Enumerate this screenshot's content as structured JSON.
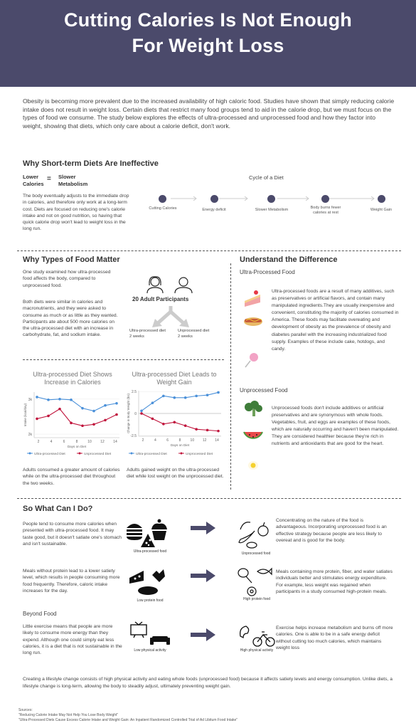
{
  "title_line1": "Cutting Calories Is Not Enough",
  "title_line2": "For Weight Loss",
  "intro": "Obesity is becoming more prevalent due to the increased availability of high caloric food. Studies have shown that simply reducing calorie intake does not result in weight loss. Certain diets that restrict many food groups tend to aid in the calorie drop, but we must focus on the types of food we consume. The study below explores the effects of ultra-processed and unprocessed food and how they factor into weight, showing that diets, which only care about a calorie deficit, don't work.",
  "short_term": {
    "heading": "Why Short-term Diets Are Ineffective",
    "eq_left1": "Lower",
    "eq_left2": "Calories",
    "eq_sign": "=",
    "eq_right1": "Slower",
    "eq_right2": "Metabolism",
    "body": "The body eventually adjusts to the immediate drop in calories, and therefore only work at a long-term cost. Diets are focused on reducing one's calorie intake and not on good nutrition, so having that quick calorie drop won't lead to weight loss in the long run.",
    "cycle_title": "Cycle of a Diet",
    "cycle": [
      {
        "label": "Cutting Calories"
      },
      {
        "label": "Energy deficit"
      },
      {
        "label": "Slower Metabolism"
      },
      {
        "label": "Body burns fewer calories at rest"
      },
      {
        "label": "Weight Gain"
      }
    ]
  },
  "types": {
    "heading": "Why Types of Food Matter",
    "p1": "One study examined how ultra-processed food affects the body, compared to unprocessed food.",
    "p2": "Both diets were similar in calories and macronutrients, and they were asked to consume as much or as little as they wanted. Participants ate about 500 more calories on the ultra-processed diet with an increase in carbohydrate, fat, and sodium intake.",
    "participants": "20 Adult Participants",
    "left_diet1": "Ultra-processed diet",
    "left_diet2": "2 weeks",
    "right_diet1": "Unprocessed diet",
    "right_diet2": "2 weeks"
  },
  "difference": {
    "heading": "Understand the Difference",
    "ultra_heading": "Ultra-Processed Food",
    "ultra_body": "Ultra-processed foods are a result of many additives, such as preservatives or artificial flavors, and contain many manipulated ingredients.They are usually inexpensive and convenient, constituting the majority of calories consumed in America. These foods may facilitate overeating and development of obesity as the prevalence of obesity and diabetes parallel with the increasing industrialized food supply. Examples of these include cake, hotdogs, and candy.",
    "un_heading": "Unprocessed Food",
    "un_body": "Unprocessed foods don't include additives or artificial preservatives and are synonymous with whole foods. Vegetables, fruit, and eggs are examples of these foods, which are naturally occurring and haven't been manipulated. They are considered healthier because they're rich in nutrients and antioxidants that are good for the heart."
  },
  "chart_data": [
    {
      "type": "line",
      "title": "Ultra-processed Diet Shows Increase in Calories",
      "xlabel": "Days on Diet",
      "ylabel": "Intake (kcal/day)",
      "x": [
        1,
        2,
        3,
        4,
        5,
        6,
        7,
        8
      ],
      "x_ticks": [
        2,
        4,
        6,
        8,
        10,
        12,
        14
      ],
      "y_ticks": [
        "2k",
        "3k"
      ],
      "ylim": [
        1900,
        3200
      ],
      "series": [
        {
          "name": "Ultra-processed Diet",
          "color": "#4a90d9",
          "values": [
            3060,
            2980,
            3000,
            2980,
            2740,
            2660,
            2820,
            2880
          ]
        },
        {
          "name": "Unprocessed Diet",
          "color": "#c0143c",
          "values": [
            2440,
            2520,
            2720,
            2320,
            2240,
            2280,
            2400,
            2560
          ]
        }
      ],
      "caption": "Adults consumed a greater amount of calories while on the ultra-processed diet throughout the two weeks."
    },
    {
      "type": "line",
      "title": "Ultra-processed Diet Leads to Weight Gain",
      "xlabel": "Days on Diet",
      "ylabel": "Change in Body Weight (lbs)",
      "x": [
        1,
        2,
        3,
        4,
        5,
        6,
        7,
        8
      ],
      "x_ticks": [
        2,
        4,
        6,
        8,
        10,
        12,
        14
      ],
      "y_ticks": [
        "2.5",
        "0",
        "-2.5"
      ],
      "ylim": [
        -2.6,
        2.6
      ],
      "series": [
        {
          "name": "Ultra-processed Diet",
          "color": "#4a90d9",
          "values": [
            0.3,
            1.2,
            2.0,
            1.8,
            1.8,
            2.0,
            2.1,
            2.4
          ]
        },
        {
          "name": "Unprocessed Diet",
          "color": "#c0143c",
          "values": [
            0.0,
            -0.6,
            -1.2,
            -1.0,
            -1.4,
            -1.8,
            -1.9,
            -2.0
          ]
        }
      ],
      "caption": "Adults gained weight on the ultra-processed diet while lost weight on the unprocessed diet."
    }
  ],
  "what_can": {
    "heading": "So What Can I Do?",
    "rows": [
      {
        "left_text": "People tend to consume more calories when presented with ultra-processed food. It may taste good, but it doesn't satiate one's stomach and isn't sustainable.",
        "left_label": "Ultra-processed food",
        "right_label": "Unprocessed food",
        "right_text": "Concentrating on the nature of the food is advantageous. Incorporating unprocessed food is an effective strategy because people are less likely to overeat and is good for the body."
      },
      {
        "left_text": "Meals without protein lead to a lower satiety level, which results in people consuming more food frequently. Therefore, caloric intake increases for the day.",
        "left_label": "Low protein food",
        "right_label": "High protein food",
        "right_text": "Meals containing more protein, fiber, and water satiates individuals better and stimulates energy expenditure. For example, less weight was regained when participants in a study consumed high-protein meals."
      },
      {
        "left_text": "Little exercise means that people are more likely to consume more energy than they expend. Although one could simply eat less calories, it is a diet that is not sustainable in the long run.",
        "left_label": "Low physical activity",
        "right_label": "High physical activity",
        "right_text": "Exercise helps increase metabolism and burns off more calories. One is able to be in a safe energy deficit without cutting too much calories, which maintains weight loss"
      }
    ],
    "beyond": "Beyond Food",
    "conclusion": "Creating a lifestyle change consists of high physical activity and eating whole foods (unprocessed food) because it affects satiety levels and energy consumption. Unlike diets, a lifestyle change is long-term, allowing the body to steadily adjust, ultimately preventing weight gain."
  },
  "sources": {
    "label": "Sources:",
    "s1": "\"Reducing Calorie Intake May Not Help You Lose Body Weight\"",
    "s2": "\"Ultra-Processed Diets Cause Excess Calorie Intake and Weight Gain: An Inpatient Randomized Controlled Trial of Ad Libitum Food Intake\""
  }
}
